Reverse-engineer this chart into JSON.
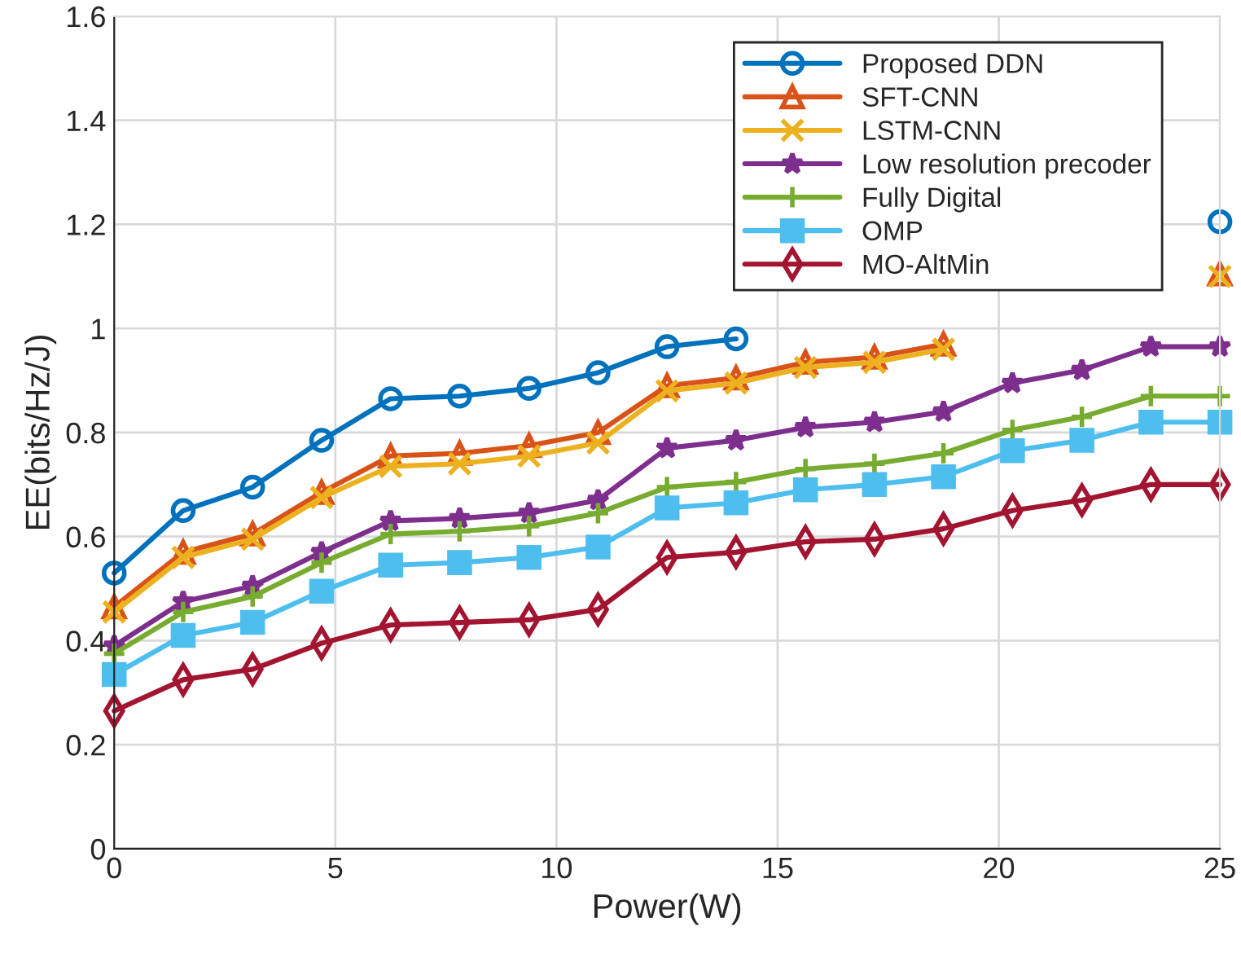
{
  "chart_data": {
    "type": "line",
    "xlabel": "Power(W)",
    "ylabel": "EE(bits/Hz/J)",
    "x": [
      0,
      1.56,
      3.13,
      4.69,
      6.25,
      7.81,
      9.38,
      10.94,
      12.5,
      14.06,
      15.63,
      17.19,
      18.75,
      20.31,
      21.88,
      23.44,
      25
    ],
    "series": [
      {
        "name": "Proposed DDN",
        "color": "#0072bd",
        "marker": "circle",
        "values": [
          0.53,
          0.65,
          0.695,
          0.785,
          0.865,
          0.87,
          0.885,
          0.915,
          0.965,
          0.98,
          null,
          null,
          null,
          null,
          null,
          null,
          1.205
        ]
      },
      {
        "name": "SFT-CNN",
        "color": "#d95319",
        "marker": "triangle",
        "values": [
          0.465,
          0.57,
          0.605,
          0.685,
          0.755,
          0.76,
          0.775,
          0.8,
          0.89,
          0.905,
          0.935,
          0.945,
          0.97,
          null,
          null,
          null,
          1.105
        ]
      },
      {
        "name": "LSTM-CNN",
        "color": "#edb120",
        "marker": "cross",
        "values": [
          0.455,
          0.56,
          0.595,
          0.675,
          0.735,
          0.74,
          0.755,
          0.78,
          0.88,
          0.895,
          0.925,
          0.935,
          0.96,
          null,
          null,
          null,
          1.1
        ]
      },
      {
        "name": "Low resolution precoder",
        "color": "#7e2f8e",
        "marker": "star",
        "values": [
          0.39,
          0.475,
          0.505,
          0.57,
          0.63,
          0.635,
          0.645,
          0.67,
          0.77,
          0.785,
          0.81,
          0.82,
          0.84,
          0.895,
          0.92,
          0.965,
          0.965
        ]
      },
      {
        "name": "Fully Digital",
        "color": "#77ac30",
        "marker": "plus",
        "values": [
          0.375,
          0.455,
          0.485,
          0.55,
          0.605,
          0.61,
          0.62,
          0.645,
          0.695,
          0.705,
          0.73,
          0.74,
          0.76,
          0.805,
          0.83,
          0.87,
          0.87
        ]
      },
      {
        "name": "OMP",
        "color": "#4dbeee",
        "marker": "square",
        "values": [
          0.335,
          0.41,
          0.435,
          0.495,
          0.545,
          0.55,
          0.56,
          0.58,
          0.655,
          0.665,
          0.69,
          0.7,
          0.715,
          0.765,
          0.785,
          0.82,
          0.82
        ]
      },
      {
        "name": "MO-AltMin",
        "color": "#a2142f",
        "marker": "diamond",
        "values": [
          0.265,
          0.325,
          0.345,
          0.395,
          0.43,
          0.435,
          0.44,
          0.46,
          0.56,
          0.57,
          0.59,
          0.595,
          0.615,
          0.65,
          0.67,
          0.7,
          0.7
        ]
      }
    ],
    "xlim": [
      0,
      25
    ],
    "xticks": [
      0,
      5,
      10,
      15,
      20,
      25
    ],
    "ylim": [
      0,
      1.6
    ],
    "yticks": [
      0,
      0.2,
      0.4,
      0.6,
      0.8,
      1,
      1.2,
      1.4,
      1.6
    ],
    "grid": true,
    "legend": "top right",
    "line_style": "solid"
  }
}
